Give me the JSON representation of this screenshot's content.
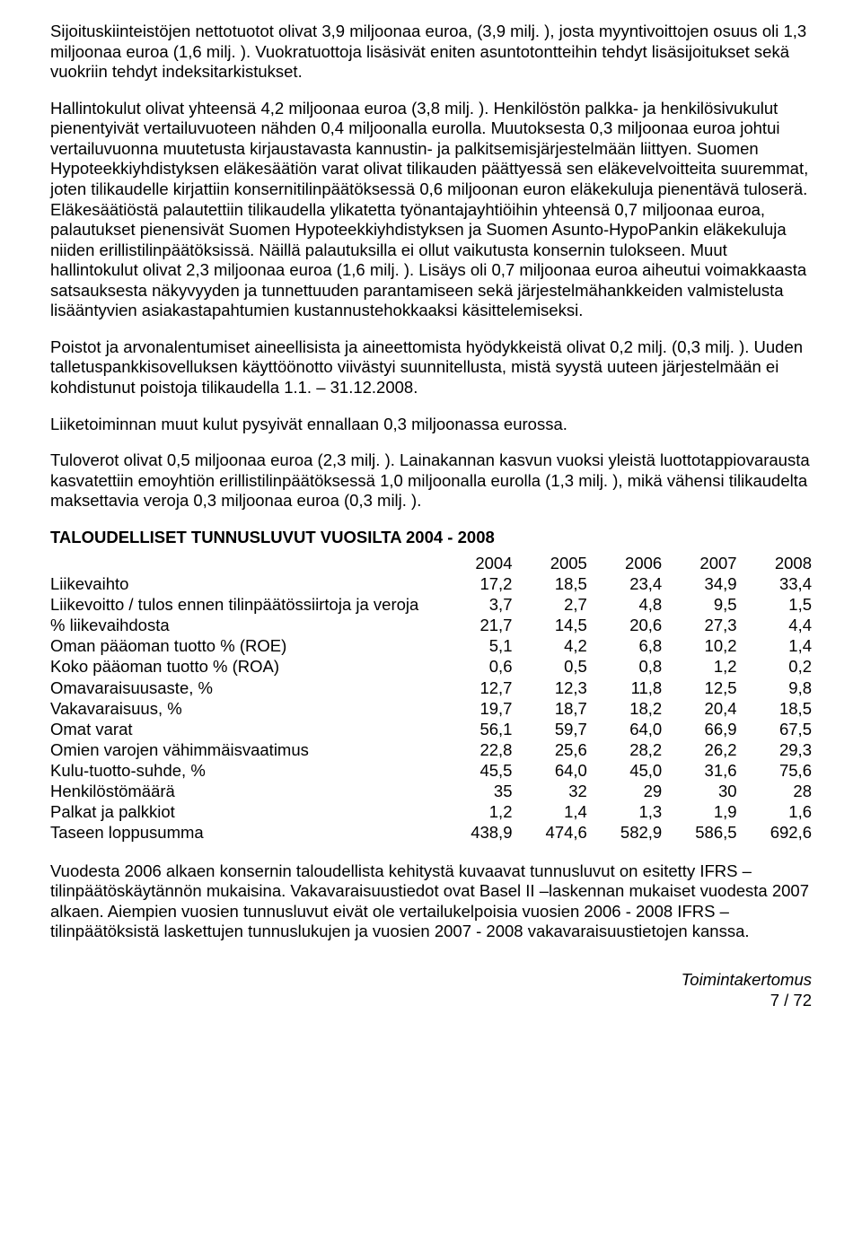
{
  "paragraphs": {
    "p1": "Sijoituskiinteistöjen nettotuotot olivat 3,9 miljoonaa euroa, (3,9 milj. ), josta myyntivoittojen osuus oli 1,3 miljoonaa euroa (1,6 milj. ). Vuokratuottoja lisäsivät eniten asuntotontteihin tehdyt lisäsijoitukset sekä vuokriin tehdyt indeksitarkistukset.",
    "p2": "Hallintokulut olivat yhteensä 4,2 miljoonaa euroa (3,8 milj. ). Henkilöstön palkka- ja henkilösivukulut pienentyivät vertailuvuoteen nähden 0,4 miljoonalla eurolla. Muutoksesta 0,3 miljoonaa euroa johtui vertailuvuonna muutetusta kirjaustavasta kannustin- ja palkitsemisjärjestelmään liittyen. Suomen Hypoteekkiyhdistyksen eläkesäätiön varat olivat tilikauden päättyessä sen eläkevelvoitteita suuremmat, joten tilikaudelle kirjattiin konsernitilinpäätöksessä 0,6 miljoonan euron eläkekuluja pienentävä tuloserä. Eläkesäätiöstä palautettiin tilikaudella ylikatetta työnantajayhtiöihin yhteensä 0,7 miljoonaa euroa, palautukset pienensivät Suomen Hypoteekkiyhdistyksen ja Suomen Asunto-HypoPankin eläkekuluja niiden erillistilinpäätöksissä. Näillä palautuksilla ei ollut vaikutusta konsernin tulokseen. Muut hallintokulut olivat 2,3 miljoonaa euroa (1,6 milj. ). Lisäys oli 0,7 miljoonaa euroa aiheutui voimakkaasta satsauksesta näkyvyyden ja tunnettuuden parantamiseen sekä järjestelmähankkeiden valmistelusta lisääntyvien asiakastapahtumien kustannustehokkaaksi käsittelemiseksi.",
    "p3": "Poistot ja arvonalentumiset aineellisista ja aineettomista hyödykkeistä olivat 0,2 milj.  (0,3 milj. ). Uuden talletuspankkisovelluksen käyttöönotto viivästyi suunnitellusta, mistä syystä uuteen järjestelmään ei kohdistunut poistoja tilikaudella 1.1. – 31.12.2008.",
    "p4": "Liiketoiminnan muut kulut pysyivät ennallaan 0,3 miljoonassa eurossa.",
    "p5": "Tuloverot olivat 0,5 miljoonaa euroa (2,3 milj. ). Lainakannan kasvun vuoksi yleistä luottotappiovarausta kasvatettiin emoyhtiön erillistilinpäätöksessä 1,0 miljoonalla eurolla (1,3 milj. ), mikä vähensi tilikaudelta maksettavia veroja 0,3 miljoonaa euroa (0,3 milj. )."
  },
  "table": {
    "title": "TALOUDELLISET TUNNUSLUVUT VUOSILTA 2004 - 2008",
    "years": [
      "2004",
      "2005",
      "2006",
      "2007",
      "2008"
    ],
    "rows": [
      {
        "label": "Liikevaihto",
        "indent": false,
        "values": [
          "17,2",
          "18,5",
          "23,4",
          "34,9",
          "33,4"
        ]
      },
      {
        "label": "Liikevoitto / tulos ennen tilinpäätössiirtoja ja veroja",
        "indent": false,
        "values": [
          "3,7",
          "2,7",
          "4,8",
          "9,5",
          "1,5"
        ]
      },
      {
        "label": "% liikevaihdosta",
        "indent": true,
        "values": [
          "21,7",
          "14,5",
          "20,6",
          "27,3",
          "4,4"
        ]
      },
      {
        "label": "Oman pääoman tuotto % (ROE)",
        "indent": false,
        "values": [
          "5,1",
          "4,2",
          "6,8",
          "10,2",
          "1,4"
        ]
      },
      {
        "label": "Koko pääoman tuotto % (ROA)",
        "indent": false,
        "values": [
          "0,6",
          "0,5",
          "0,8",
          "1,2",
          "0,2"
        ]
      },
      {
        "label": "Omavaraisuusaste, %",
        "indent": false,
        "values": [
          "12,7",
          "12,3",
          "11,8",
          "12,5",
          "9,8"
        ]
      },
      {
        "label": "Vakavaraisuus, %",
        "indent": false,
        "values": [
          "19,7",
          "18,7",
          "18,2",
          "20,4",
          "18,5"
        ]
      },
      {
        "label": "Omat varat",
        "indent": false,
        "values": [
          "56,1",
          "59,7",
          "64,0",
          "66,9",
          "67,5"
        ]
      },
      {
        "label": "Omien varojen vähimmäisvaatimus",
        "indent": false,
        "values": [
          "22,8",
          "25,6",
          "28,2",
          "26,2",
          "29,3"
        ]
      },
      {
        "label": "Kulu-tuotto-suhde, %",
        "indent": false,
        "values": [
          "45,5",
          "64,0",
          "45,0",
          "31,6",
          "75,6"
        ]
      },
      {
        "label": "Henkilöstömäärä",
        "indent": false,
        "values": [
          "35",
          "32",
          "29",
          "30",
          "28"
        ]
      },
      {
        "label": "Palkat ja palkkiot",
        "indent": false,
        "values": [
          "1,2",
          "1,4",
          "1,3",
          "1,9",
          "1,6"
        ]
      },
      {
        "label": "Taseen loppusumma",
        "indent": false,
        "values": [
          "438,9",
          "474,6",
          "582,9",
          "586,5",
          "692,6"
        ]
      }
    ]
  },
  "footnote": "Vuodesta 2006 alkaen konsernin taloudellista kehitystä kuvaavat tunnusluvut on esitetty IFRS –tilinpäätöskäytännön mukaisina. Vakavaraisuustiedot ovat Basel II –laskennan mukaiset vuodesta 2007 alkaen. Aiempien vuosien tunnusluvut eivät ole vertailukelpoisia vuosien 2006 - 2008 IFRS –tilinpäätöksistä laskettujen tunnuslukujen ja vuosien 2007 - 2008 vakavaraisuustietojen kanssa.",
  "footer": {
    "section": "Toimintakertomus",
    "page": "7 / 72"
  }
}
